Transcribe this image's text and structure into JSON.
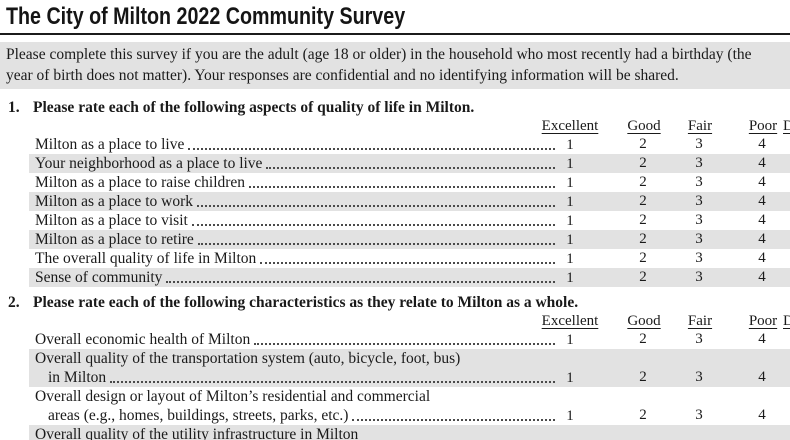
{
  "page": {
    "title": "The City of Milton 2022 Community Survey"
  },
  "intro": {
    "line1": "Please complete this survey if you are the adult (age 18 or older) in the household who most recently had a birthday (the",
    "line2": "year of birth does not matter). Your responses are confidential and no identifying information will be shared."
  },
  "scale": {
    "headers": [
      "Excellent",
      "Good",
      "Fair",
      "Poor",
      "Don't Know"
    ],
    "values": [
      "1",
      "2",
      "3",
      "4"
    ]
  },
  "q1": {
    "number": "1.",
    "prompt": "Please rate each of the following aspects of quality of life in Milton.",
    "rows": [
      {
        "label": "Milton as a place to live"
      },
      {
        "label": "Your neighborhood as a place to live"
      },
      {
        "label": "Milton as a place to raise children"
      },
      {
        "label": "Milton as a place to work"
      },
      {
        "label": "Milton as a place to visit"
      },
      {
        "label": "Milton as a place to retire"
      },
      {
        "label": "The overall quality of life in Milton"
      },
      {
        "label": "Sense of community"
      }
    ]
  },
  "q2": {
    "number": "2.",
    "prompt": "Please rate each of the following characteristics as they relate to Milton as a whole.",
    "rows": [
      {
        "label": "Overall economic health of Milton"
      },
      {
        "line1": "Overall quality of the transportation system (auto, bicycle, foot, bus)",
        "line2": "in Milton"
      },
      {
        "line1": "Overall design or layout of Milton’s residential and commercial",
        "line2": "areas (e.g., homes, buildings, streets, parks, etc.) "
      },
      {
        "line1": "Overall quality of the utility infrastructure in Milton"
      }
    ]
  }
}
